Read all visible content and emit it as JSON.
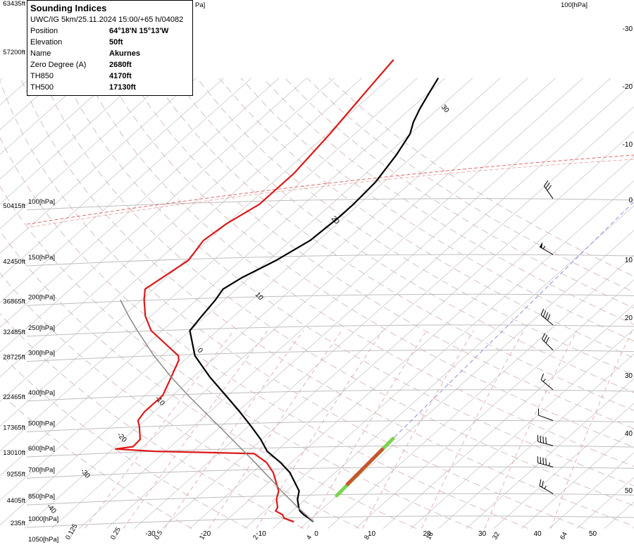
{
  "info": {
    "title": "Sounding Indices",
    "subtitle": "UWC/IG 5km/25.11.2024 15:00/+65 h/04082",
    "rows": [
      {
        "key": "Position",
        "value": "64°18'N 15°13'W"
      },
      {
        "key": "Elevation",
        "value": "50ft"
      },
      {
        "key": "Name",
        "value": "Akurnes"
      },
      {
        "key": "Zero Degree (A)",
        "value": "2680ft"
      },
      {
        "key": "TH850",
        "value": "4170ft"
      },
      {
        "key": "TH500",
        "value": "17130ft"
      }
    ]
  },
  "chart_data": {
    "type": "line",
    "pressure_levels": [
      {
        "hPa": 100,
        "label": "100[hPa]",
        "alt_label": "50415ft"
      },
      {
        "hPa": 150,
        "label": "150[hPa]",
        "alt_label": "42450ft"
      },
      {
        "hPa": 200,
        "label": "200[hPa]",
        "alt_label": "36865ft"
      },
      {
        "hPa": 250,
        "label": "250[hPa]",
        "alt_label": "32485ft"
      },
      {
        "hPa": 300,
        "label": "300[hPa]",
        "alt_label": "28725ft"
      },
      {
        "hPa": 400,
        "label": "400[hPa]",
        "alt_label": "22465ft"
      },
      {
        "hPa": 500,
        "label": "500[hPa]",
        "alt_label": "17365ft"
      },
      {
        "hPa": 600,
        "label": "600[hPa]",
        "alt_label": "13010ft"
      },
      {
        "hPa": 700,
        "label": "700[hPa]",
        "alt_label": "9255ft"
      },
      {
        "hPa": 850,
        "label": "850[hPa]",
        "alt_label": "4405ft"
      },
      {
        "hPa": 1000,
        "label": "1000[hPa]",
        "alt_label": "235ft"
      }
    ],
    "extra_axis_labels": {
      "top_left_alt": "63435ft",
      "upper_alt": "57200ft",
      "bottom_hpa": "1050[hPa]",
      "top_hpa": "100[hPa]",
      "top_hpa_cut": "Pa]"
    },
    "temperature_ticks": [
      "-30",
      "-20",
      "-10",
      "0",
      "10",
      "20",
      "30",
      "40",
      "50"
    ],
    "right_temperature_labels": [
      "-30",
      "-20",
      "-10",
      "0",
      "10",
      "20",
      "30",
      "40",
      "50"
    ],
    "isotherm_labels": [
      "30",
      "20",
      "10",
      "0",
      "-10",
      "-20",
      "-30",
      "-40"
    ],
    "mixing_ratio_labels": [
      "0.125",
      "0.25",
      "0.5",
      "1",
      "2",
      "4",
      "8",
      "16",
      "32",
      "64"
    ],
    "series": [
      {
        "name": "",
        "role": "temperature",
        "color": "#000000",
        "points": [
          [
            1000,
            1.0
          ],
          [
            975,
            -0.5
          ],
          [
            950,
            -2.2
          ],
          [
            925,
            -3.6
          ],
          [
            900,
            -4.6
          ],
          [
            850,
            -6.4
          ],
          [
            800,
            -7.8
          ],
          [
            700,
            -13.2
          ],
          [
            650,
            -17.0
          ],
          [
            600,
            -21.6
          ],
          [
            550,
            -25.2
          ],
          [
            500,
            -29.6
          ],
          [
            450,
            -34.6
          ],
          [
            400,
            -40.4
          ],
          [
            350,
            -47.0
          ],
          [
            300,
            -54.0
          ],
          [
            250,
            -60.0
          ],
          [
            225,
            -60.8
          ],
          [
            200,
            -61.6
          ],
          [
            185,
            -62.4
          ],
          [
            170,
            -61.3
          ],
          [
            150,
            -58.6
          ],
          [
            130,
            -56.5
          ],
          [
            110,
            -56.0
          ],
          [
            100,
            -56.0
          ],
          [
            85,
            -56.5
          ],
          [
            70,
            -58.2
          ],
          [
            60,
            -60.0
          ],
          [
            55,
            -61.8
          ],
          [
            50,
            -63.3
          ],
          [
            45,
            -64.7
          ],
          [
            40,
            -66.2
          ]
        ]
      },
      {
        "name": "",
        "role": "dewpoint",
        "color": "#dd1818",
        "points": [
          [
            1000,
            -2.5
          ],
          [
            975,
            -5.0
          ],
          [
            950,
            -6.0
          ],
          [
            925,
            -8.0
          ],
          [
            900,
            -8.4
          ],
          [
            850,
            -10.2
          ],
          [
            800,
            -11.5
          ],
          [
            700,
            -16.2
          ],
          [
            650,
            -19.5
          ],
          [
            610,
            -23.5
          ],
          [
            600,
            -42.0
          ],
          [
            590,
            -49.5
          ],
          [
            580,
            -46.8
          ],
          [
            550,
            -47.0
          ],
          [
            500,
            -49.8
          ],
          [
            480,
            -51.2
          ],
          [
            450,
            -51.8
          ],
          [
            400,
            -51.8
          ],
          [
            350,
            -54.0
          ],
          [
            310,
            -56.0
          ],
          [
            300,
            -57.0
          ],
          [
            250,
            -67.0
          ],
          [
            225,
            -71.0
          ],
          [
            200,
            -74.5
          ],
          [
            185,
            -76.5
          ],
          [
            150,
            -74.5
          ],
          [
            130,
            -75.8
          ],
          [
            115,
            -75.0
          ],
          [
            100,
            -73.0
          ],
          [
            80,
            -73.0
          ],
          [
            60,
            -74.5
          ],
          [
            45,
            -76.4
          ],
          [
            35,
            -78.0
          ]
        ]
      },
      {
        "name": "",
        "role": "parcel",
        "color": "#888888",
        "points": [
          [
            1000,
            1.0
          ],
          [
            950,
            -1.8
          ],
          [
            900,
            -4.8
          ],
          [
            850,
            -7.8
          ],
          [
            800,
            -11.0
          ],
          [
            750,
            -14.2
          ],
          [
            700,
            -17.8
          ],
          [
            650,
            -21.6
          ],
          [
            600,
            -25.8
          ],
          [
            550,
            -30.4
          ],
          [
            500,
            -35.4
          ],
          [
            450,
            -41.0
          ],
          [
            400,
            -47.2
          ],
          [
            350,
            -54.0
          ],
          [
            300,
            -61.4
          ],
          [
            250,
            -69.5
          ],
          [
            225,
            -74.0
          ],
          [
            200,
            -78.8
          ]
        ]
      }
    ],
    "wind_barbs": [
      {
        "hPa": 850,
        "dir": 60,
        "speed_kt": 25
      },
      {
        "hPa": 700,
        "dir": 75,
        "speed_kt": 45
      },
      {
        "hPa": 600,
        "dir": 75,
        "speed_kt": 40
      },
      {
        "hPa": 500,
        "dir": 70,
        "speed_kt": 10
      },
      {
        "hPa": 400,
        "dir": 50,
        "speed_kt": 15
      },
      {
        "hPa": 300,
        "dir": 45,
        "speed_kt": 30
      },
      {
        "hPa": 250,
        "dir": 50,
        "speed_kt": 40
      },
      {
        "hPa": 150,
        "dir": 60,
        "speed_kt": 55
      },
      {
        "hPa": 100,
        "dir": 35,
        "speed_kt": 30
      }
    ]
  }
}
